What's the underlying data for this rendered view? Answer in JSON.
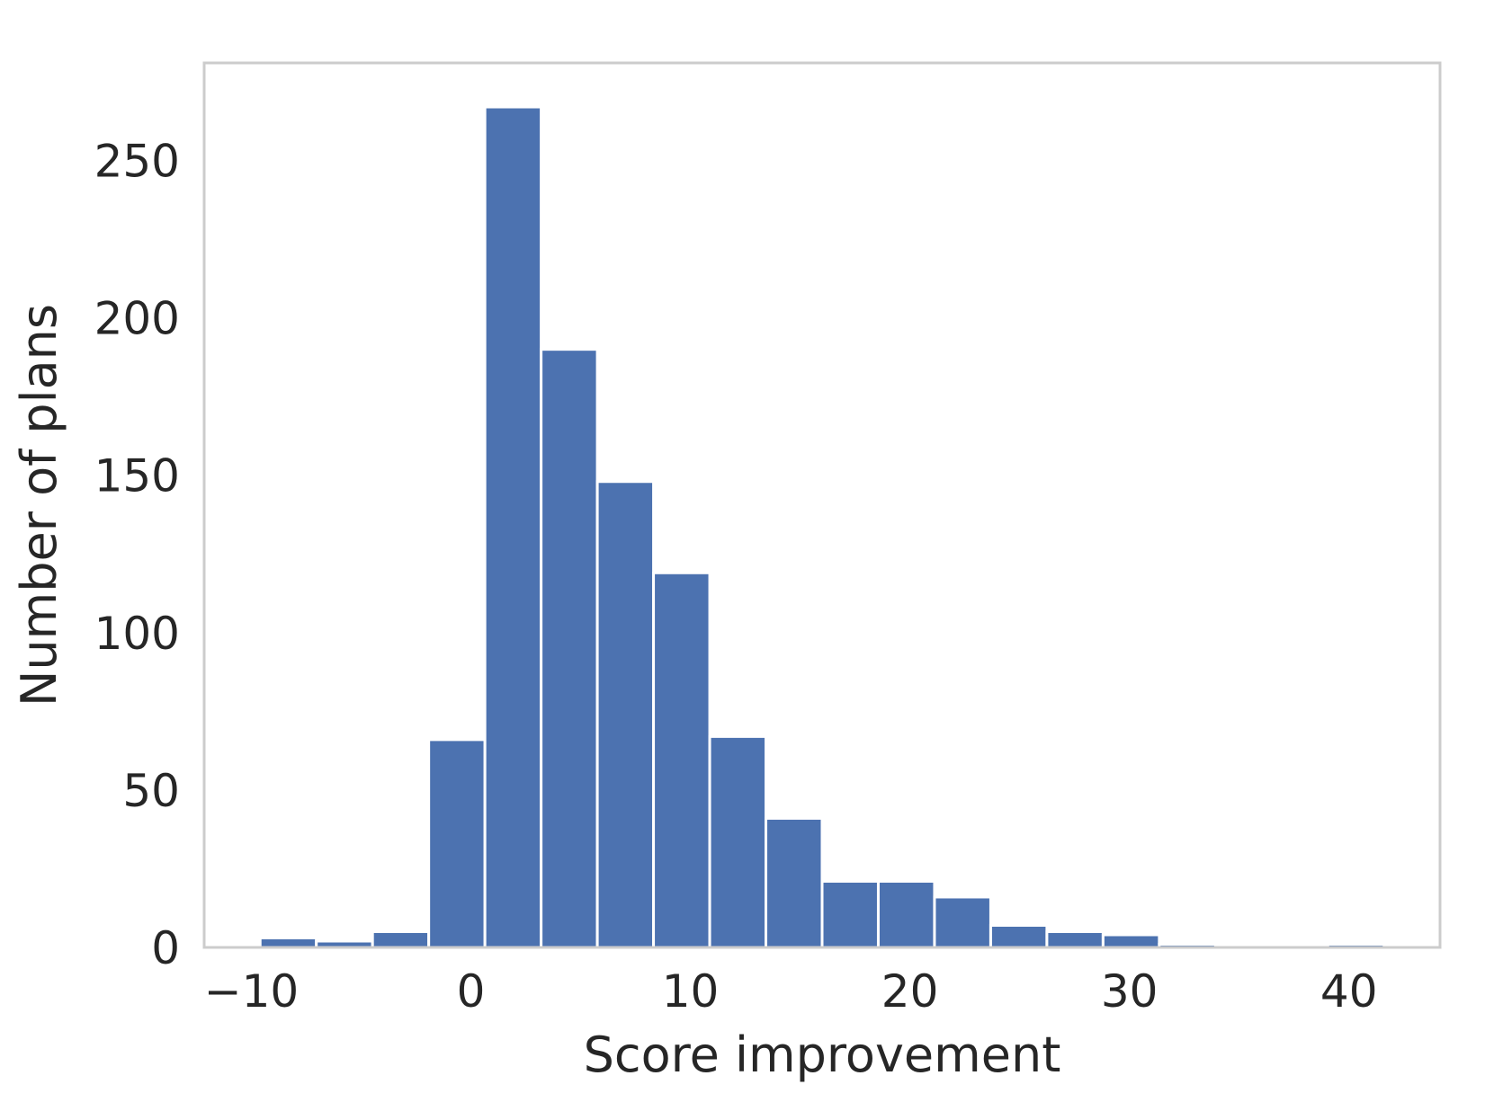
{
  "chart_data": {
    "type": "bar",
    "subtype": "histogram",
    "title": "",
    "xlabel": "Score improvement",
    "ylabel": "Number of plans",
    "xlim": [
      -12.15,
      44.15
    ],
    "ylim": [
      0,
      281
    ],
    "x_ticks": [
      {
        "value": -10,
        "label": "−10"
      },
      {
        "value": 0,
        "label": "0"
      },
      {
        "value": 10,
        "label": "10"
      },
      {
        "value": 20,
        "label": "20"
      },
      {
        "value": 30,
        "label": "30"
      },
      {
        "value": 40,
        "label": "40"
      }
    ],
    "y_ticks": [
      {
        "value": 0,
        "label": "0"
      },
      {
        "value": 50,
        "label": "50"
      },
      {
        "value": 100,
        "label": "100"
      },
      {
        "value": 150,
        "label": "150"
      },
      {
        "value": 200,
        "label": "200"
      },
      {
        "value": 250,
        "label": "250"
      }
    ],
    "bin_edges": [
      -9.6,
      -7.04,
      -4.48,
      -1.92,
      0.64,
      3.2,
      5.76,
      8.32,
      10.88,
      13.44,
      16.0,
      18.56,
      21.12,
      23.68,
      26.24,
      28.8,
      31.36,
      33.92,
      36.48,
      39.04,
      41.6
    ],
    "counts": [
      3,
      2,
      5,
      66,
      267,
      190,
      148,
      119,
      67,
      41,
      21,
      21,
      16,
      7,
      5,
      4,
      1,
      0,
      0,
      1
    ],
    "bar_color": "#4c72b0",
    "bar_edge_color": "#ffffff",
    "frame_color": "#cccccc",
    "text_color": "#262626",
    "background": "#ffffff",
    "grid": false,
    "legend": "none"
  }
}
